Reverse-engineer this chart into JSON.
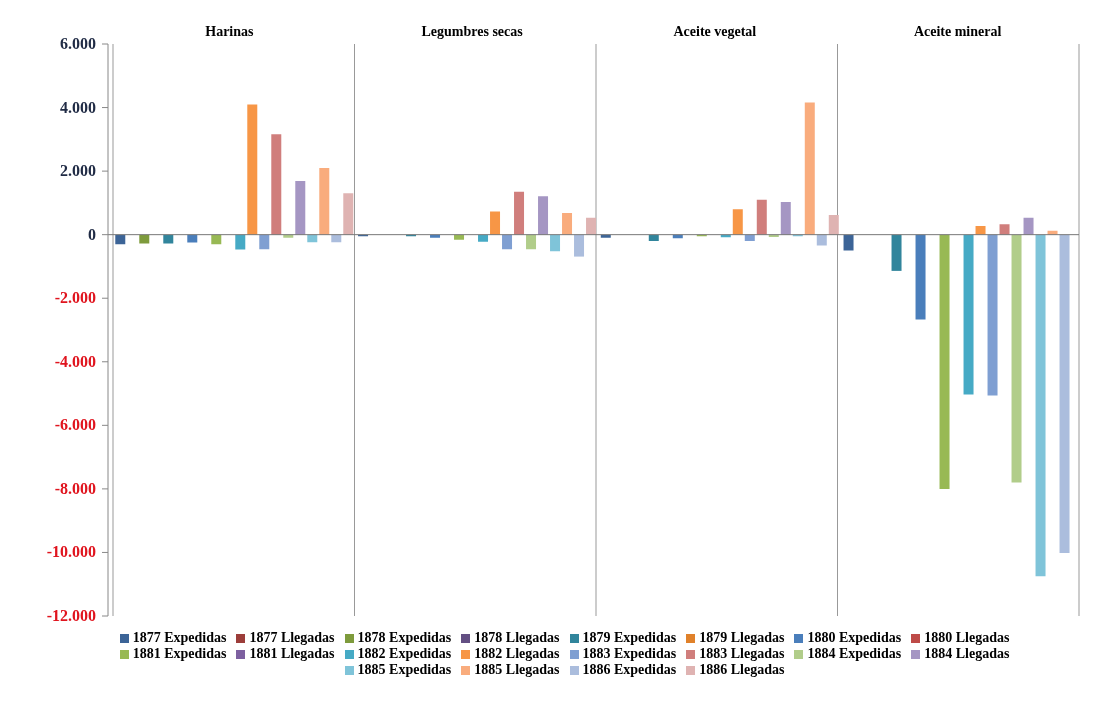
{
  "chart_data": {
    "type": "bar",
    "categories": [
      "Harinas",
      "Legumbres secas",
      "Aceite vegetal",
      "Aceite mineral"
    ],
    "series": [
      {
        "name": "1877 Expedidas",
        "color": "#3c6497",
        "values": [
          -300,
          -50,
          -100,
          -500
        ]
      },
      {
        "name": "1877 Llegadas",
        "color": "#9c3d3a",
        "values": [
          0,
          0,
          0,
          0
        ]
      },
      {
        "name": "1878 Expedidas",
        "color": "#7e9b3c",
        "values": [
          -280,
          0,
          0,
          0
        ]
      },
      {
        "name": "1878 Llegadas",
        "color": "#634f83",
        "values": [
          0,
          0,
          0,
          0
        ]
      },
      {
        "name": "1879 Expedidas",
        "color": "#31859c",
        "values": [
          -280,
          -50,
          -200,
          -1140
        ]
      },
      {
        "name": "1879 Llegadas",
        "color": "#e0812a",
        "values": [
          0,
          0,
          0,
          0
        ]
      },
      {
        "name": "1880 Expedidas",
        "color": "#4a7ebb",
        "values": [
          -250,
          -100,
          -110,
          -2670
        ]
      },
      {
        "name": "1880 Llegadas",
        "color": "#be4b48",
        "values": [
          0,
          0,
          0,
          0
        ]
      },
      {
        "name": "1881 Expedidas",
        "color": "#98b954",
        "values": [
          -300,
          -160,
          -50,
          -8000
        ]
      },
      {
        "name": "1881 Llegadas",
        "color": "#7d60a0",
        "values": [
          0,
          0,
          0,
          0
        ]
      },
      {
        "name": "1882 Expedidas",
        "color": "#46aac5",
        "values": [
          -470,
          -220,
          -80,
          -5030
        ]
      },
      {
        "name": "1882 Llegadas",
        "color": "#f79646",
        "values": [
          4100,
          730,
          800,
          270
        ]
      },
      {
        "name": "1883 Expedidas",
        "color": "#7f9fd2",
        "values": [
          -460,
          -460,
          -200,
          -5060
        ]
      },
      {
        "name": "1883 Llegadas",
        "color": "#d07e7c",
        "values": [
          3160,
          1350,
          1100,
          330
        ]
      },
      {
        "name": "1884 Expedidas",
        "color": "#b1cd8a",
        "values": [
          -100,
          -460,
          -70,
          -7800
        ]
      },
      {
        "name": "1884 Llegadas",
        "color": "#a596c3",
        "values": [
          1690,
          1210,
          1030,
          530
        ]
      },
      {
        "name": "1885 Expedidas",
        "color": "#7fc4d9",
        "values": [
          -240,
          -520,
          -50,
          -10750
        ]
      },
      {
        "name": "1885 Llegadas",
        "color": "#f9ac7d",
        "values": [
          2100,
          680,
          4160,
          120
        ]
      },
      {
        "name": "1886 Expedidas",
        "color": "#abbddd",
        "values": [
          -240,
          -690,
          -340,
          -10020
        ]
      },
      {
        "name": "1886 Llegadas",
        "color": "#dfb3b2",
        "values": [
          1300,
          530,
          620,
          0
        ]
      }
    ],
    "ylim": [
      -12000,
      6000
    ],
    "yticks": [
      {
        "value": -12000,
        "label": "-12.000"
      },
      {
        "value": -10000,
        "label": "-10.000"
      },
      {
        "value": -8000,
        "label": "-8.000"
      },
      {
        "value": -6000,
        "label": "-6.000"
      },
      {
        "value": -4000,
        "label": "-4.000"
      },
      {
        "value": -2000,
        "label": "-2.000"
      },
      {
        "value": 0,
        "label": "0"
      },
      {
        "value": 2000,
        "label": "2.000"
      },
      {
        "value": 4000,
        "label": "4.000"
      },
      {
        "value": 6000,
        "label": "6.000"
      }
    ],
    "grid": "x",
    "legend": "bottom"
  }
}
